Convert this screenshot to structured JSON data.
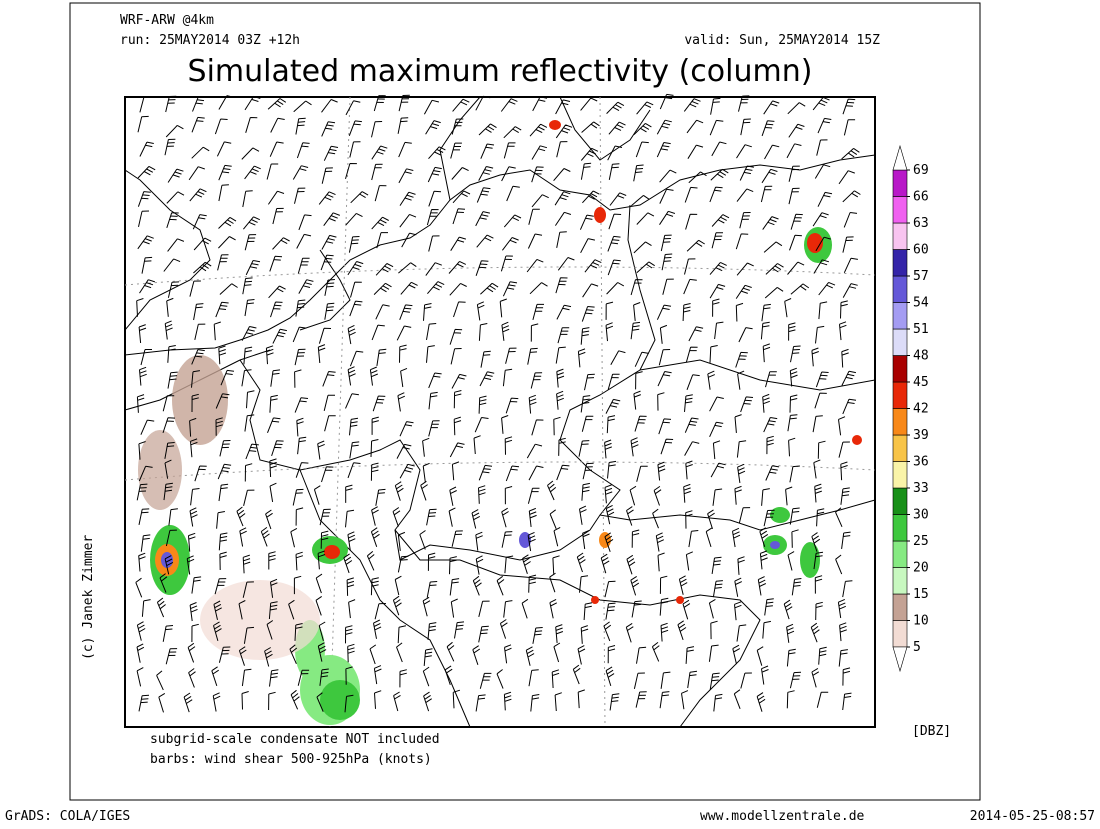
{
  "header": {
    "model": "WRF-ARW @4km",
    "run": "run: 25MAY2014 03Z +12h",
    "valid": "valid: Sun, 25MAY2014 15Z",
    "title": "Simulated maximum reflectivity (column)"
  },
  "colorbar": {
    "levels": [
      5,
      10,
      15,
      20,
      25,
      30,
      33,
      36,
      39,
      42,
      45,
      48,
      51,
      54,
      57,
      60,
      63,
      66,
      69
    ],
    "colors": [
      "#f2dcd4",
      "#c4a294",
      "#c8f8c0",
      "#86ea82",
      "#3ec83e",
      "#189018",
      "#faf4a8",
      "#f8c448",
      "#f88818",
      "#e82808",
      "#a80000",
      "#dcdcf8",
      "#a49cf2",
      "#6458d8",
      "#3424a8",
      "#f8c4f0",
      "#f060f0",
      "#b818c8"
    ],
    "unit": "[DBZ]"
  },
  "notes": [
    "subgrid-scale condensate NOT included",
    "barbs: wind shear 500-925hPa (knots)"
  ],
  "credit": "(c) Janek Zimmer",
  "footer": {
    "left": "GrADS: COLA/IGES",
    "center": "www.modellzentrale.de",
    "right": "2014-05-25-08:57"
  }
}
